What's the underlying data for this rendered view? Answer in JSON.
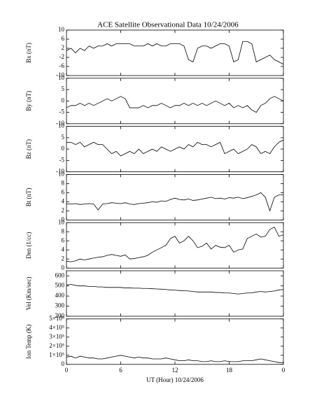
{
  "title": "ACE Satellite Observational Data   10/24/2006",
  "xlabel": "UT (Hour)  10/24/2006",
  "xlim": [
    0,
    24
  ],
  "xticks": [
    0,
    6,
    12,
    18,
    {
      "value": 24,
      "label": "0"
    }
  ],
  "x": [
    0,
    0.5,
    1,
    1.5,
    2,
    2.5,
    3,
    3.5,
    4,
    4.5,
    5,
    5.5,
    6,
    6.5,
    7,
    7.5,
    8,
    8.5,
    9,
    9.5,
    10,
    10.5,
    11,
    11.5,
    12,
    12.5,
    13,
    13.5,
    14,
    14.5,
    15,
    15.5,
    16,
    16.5,
    17,
    17.5,
    18,
    18.5,
    19,
    19.5,
    20,
    20.5,
    21,
    21.5,
    22,
    22.5,
    23,
    23.5,
    24
  ],
  "chart_data": [
    {
      "type": "line",
      "ylabel": "Bx (nT)",
      "color": "#000000",
      "ylim": [
        -10,
        10
      ],
      "yticks": [
        10,
        6,
        2,
        -2,
        -6,
        -10
      ],
      "values": [
        1,
        2,
        0,
        2,
        1,
        3,
        2,
        3,
        3,
        4,
        3,
        4,
        4,
        4,
        4,
        3,
        3,
        3,
        4,
        3,
        4,
        3,
        3,
        4,
        4,
        4,
        3,
        -3,
        -4,
        2,
        3,
        3,
        2,
        3,
        4,
        4,
        3,
        -4,
        -3,
        5,
        5,
        4,
        -4,
        -3,
        -2,
        -1,
        -3,
        -4,
        -5
      ]
    },
    {
      "type": "line",
      "ylabel": "By (nT)",
      "color": "#000000",
      "ylim": [
        -10,
        10
      ],
      "yticks": [
        10,
        5,
        0,
        -5,
        -10
      ],
      "values": [
        -3,
        -2,
        -2,
        -1,
        -2,
        -1,
        -2,
        -1,
        0,
        1,
        0,
        1,
        2,
        1,
        -3,
        -3,
        -3,
        -2,
        -3,
        -2,
        -2,
        -1,
        -2,
        -3,
        -2,
        -2,
        -1,
        -2,
        -1,
        -2,
        -1,
        -2,
        -1,
        0,
        -1,
        -2,
        -1,
        -3,
        -2,
        -3,
        -2,
        -4,
        -5,
        -2,
        -1,
        1,
        2,
        1,
        0
      ]
    },
    {
      "type": "line",
      "ylabel": "Bz (nT)",
      "color": "#000000",
      "ylim": [
        -10,
        10
      ],
      "yticks": [
        10,
        5,
        0,
        -5,
        -10
      ],
      "values": [
        3,
        3,
        2,
        3,
        1,
        2,
        3,
        2,
        2,
        0,
        -2,
        -1,
        -3,
        -2,
        -1,
        -2,
        0,
        -2,
        -1,
        0,
        -1,
        1,
        0,
        -1,
        0,
        1,
        0,
        2,
        1,
        3,
        2,
        2,
        1,
        2,
        3,
        -2,
        -1,
        0,
        -2,
        -1,
        0,
        2,
        1,
        -2,
        -1,
        -2,
        1,
        3,
        4
      ]
    },
    {
      "type": "line",
      "ylabel": "Bt (nT)",
      "color": "#000000",
      "ylim": [
        0,
        10
      ],
      "yticks": [
        10,
        8,
        6,
        4,
        2,
        0
      ],
      "values": [
        3.5,
        3.5,
        3.6,
        3.4,
        3.5,
        3.6,
        3.5,
        2.2,
        3.5,
        3.6,
        3.8,
        3.7,
        3.6,
        3.8,
        3.5,
        3.4,
        3.6,
        3.7,
        3.8,
        4,
        3.9,
        4.2,
        4.1,
        4.5,
        4.8,
        4.5,
        4.4,
        4.6,
        4.3,
        4.4,
        4.6,
        4.8,
        5,
        4.7,
        4.8,
        4.6,
        4.9,
        4.8,
        5,
        4.7,
        4.9,
        5.2,
        5.5,
        6,
        5,
        2,
        5,
        5.5,
        5.5
      ]
    },
    {
      "type": "line",
      "ylabel": "Den (1/cc)",
      "color": "#000000",
      "ylim": [
        0,
        10
      ],
      "yticks": [
        10,
        8,
        6,
        4,
        2,
        0
      ],
      "values": [
        1.5,
        1.4,
        1.6,
        2,
        1.8,
        2,
        2.2,
        2.4,
        2.5,
        2.8,
        3,
        2.8,
        2.6,
        2.9,
        2,
        2.1,
        2.3,
        2.5,
        2.8,
        3.5,
        4,
        4.5,
        5,
        6.5,
        7,
        5.5,
        6,
        7,
        6,
        4.5,
        4.8,
        5.5,
        4.2,
        5,
        4.6,
        4.5,
        5,
        3.5,
        4,
        4.2,
        6.5,
        7,
        7.5,
        6.8,
        7,
        8.5,
        9,
        7,
        7.3
      ]
    },
    {
      "type": "line",
      "ylabel": "Vel (Km/sec)",
      "color": "#000000",
      "ylim": [
        200,
        650
      ],
      "yticks": [
        600,
        500,
        400,
        300,
        200
      ],
      "values": [
        510,
        515,
        505,
        500,
        500,
        495,
        495,
        490,
        490,
        485,
        485,
        485,
        485,
        480,
        480,
        478,
        478,
        475,
        475,
        472,
        470,
        468,
        465,
        460,
        458,
        455,
        452,
        450,
        445,
        440,
        440,
        440,
        440,
        435,
        435,
        430,
        430,
        425,
        420,
        425,
        430,
        430,
        440,
        445,
        440,
        445,
        450,
        460,
        465
      ]
    },
    {
      "type": "line",
      "ylabel": "Ion Temp (K)",
      "color": "#000000",
      "ylim": [
        0,
        500000
      ],
      "yticks": [
        {
          "value": 500000,
          "label": "5×10⁵"
        },
        {
          "value": 400000,
          "label": "4×10⁵"
        },
        {
          "value": 300000,
          "label": "3×10⁵"
        },
        {
          "value": 200000,
          "label": "2×10⁵"
        },
        {
          "value": 100000,
          "label": "1×10⁵"
        },
        0
      ],
      "values": [
        80000,
        90000,
        70000,
        90000,
        80000,
        70000,
        70000,
        60000,
        60000,
        70000,
        80000,
        90000,
        100000,
        90000,
        80000,
        70000,
        80000,
        70000,
        70000,
        60000,
        60000,
        60000,
        70000,
        60000,
        50000,
        40000,
        40000,
        50000,
        40000,
        40000,
        30000,
        30000,
        40000,
        30000,
        30000,
        40000,
        30000,
        30000,
        30000,
        40000,
        40000,
        40000,
        50000,
        60000,
        50000,
        40000,
        30000,
        20000,
        20000
      ]
    }
  ]
}
